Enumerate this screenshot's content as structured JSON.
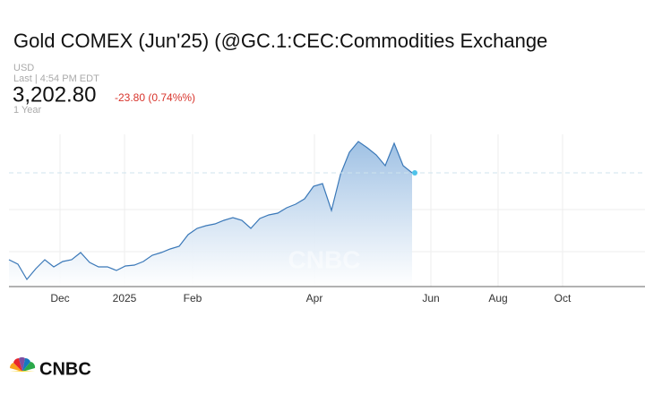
{
  "header": {
    "currency": "USD",
    "timestamp": "Last | 4:54 PM EDT",
    "price": "3,202.80",
    "change": "-23.80 (0.74%%)",
    "range": "1 Year"
  },
  "logo": {
    "text": "CNBC"
  },
  "chart_data": {
    "type": "area",
    "title": "Gold COMEX (Jun'25) (@GC.1:CEC:Commodities Exchange",
    "color": "#3a78b8",
    "categories": [
      null,
      null,
      null,
      null,
      null,
      null,
      null,
      null,
      null,
      null,
      null,
      null,
      null,
      null,
      null,
      null,
      null,
      null,
      null,
      null,
      null,
      null,
      null,
      null,
      null,
      null,
      null,
      null,
      null,
      null,
      null,
      null,
      null,
      null,
      null,
      null,
      null,
      null,
      null,
      null,
      null,
      null,
      null,
      null,
      null,
      null
    ],
    "values": [
      2718,
      2693,
      2608,
      2668,
      2718,
      2678,
      2708,
      2718,
      2758,
      2703,
      2678,
      2678,
      2658,
      2683,
      2688,
      2708,
      2743,
      2758,
      2778,
      2793,
      2858,
      2893,
      2908,
      2918,
      2938,
      2953,
      2938,
      2893,
      2948,
      2968,
      2978,
      3008,
      3028,
      3058,
      3128,
      3143,
      2993,
      3193,
      3318,
      3378,
      3343,
      3303,
      3243,
      3368,
      3243,
      3202.8
    ],
    "xlim": [
      0,
      71
    ],
    "ylim": [
      2568,
      3418
    ],
    "xticks": [
      {
        "value": 5.7,
        "label": "Dec"
      },
      {
        "value": 12.9,
        "label": "2025"
      },
      {
        "value": 20.5,
        "label": "Feb"
      },
      {
        "value": 34.1,
        "label": "Apr"
      },
      {
        "value": 47.1,
        "label": "Jun"
      },
      {
        "value": 54.6,
        "label": "Aug"
      },
      {
        "value": 61.8,
        "label": "Oct"
      }
    ],
    "grid": true
  }
}
